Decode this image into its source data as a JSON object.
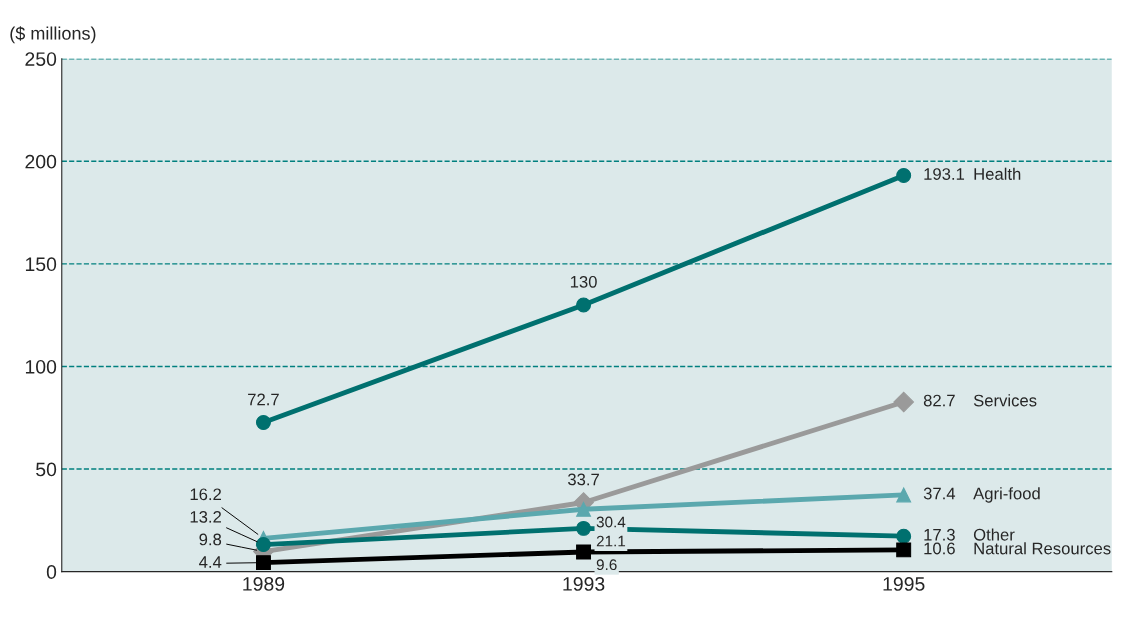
{
  "chart_data": {
    "type": "line",
    "ylabel": "($ millions)",
    "categories": [
      "1989",
      "1993",
      "1995"
    ],
    "series": [
      {
        "name": "Health",
        "color": "#00706f",
        "marker": "circle",
        "values": [
          72.7,
          130,
          193.1
        ]
      },
      {
        "name": "Services",
        "color": "#9a9a9a",
        "marker": "diamond",
        "values": [
          9.8,
          33.7,
          82.7
        ]
      },
      {
        "name": "Agri-food",
        "color": "#5ba8ae",
        "marker": "triangle",
        "values": [
          16.2,
          30.4,
          37.4
        ]
      },
      {
        "name": "Other",
        "color": "#00706f",
        "marker": "circle",
        "values": [
          13.2,
          21.1,
          17.3
        ]
      },
      {
        "name": "Natural Resources",
        "color": "#000000",
        "marker": "square",
        "values": [
          4.4,
          9.6,
          10.6
        ]
      }
    ],
    "ylim": [
      0,
      250
    ],
    "yticks": [
      0,
      50,
      100,
      150,
      200,
      250
    ],
    "grid": "y",
    "data_labels": true,
    "line_style": "solid"
  }
}
